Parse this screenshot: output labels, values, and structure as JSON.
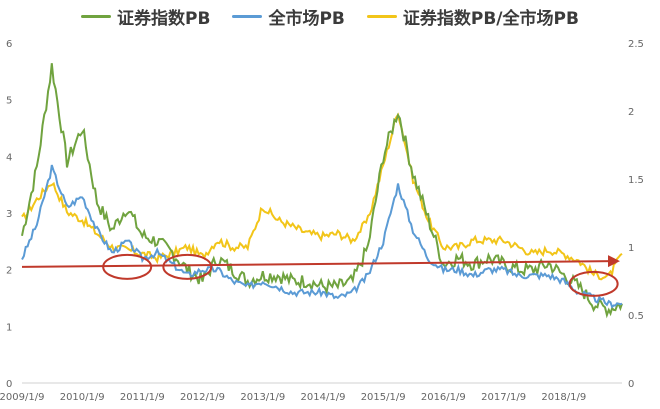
{
  "chart_data": {
    "type": "line",
    "title": "",
    "legend": {
      "placement": "top"
    },
    "series": [
      {
        "name": "证券指数PB",
        "color": "#70a33f",
        "axis": "left"
      },
      {
        "name": "全市场PB",
        "color": "#5b9bd5",
        "axis": "left"
      },
      {
        "name": "证券指数PB/全市场PB",
        "color": "#f2c519",
        "axis": "right"
      }
    ],
    "x": [
      "2009/1/9",
      "2009/4/9",
      "2009/7/9",
      "2009/10/9",
      "2010/1/9",
      "2010/4/9",
      "2010/7/9",
      "2010/10/9",
      "2011/1/9",
      "2011/4/9",
      "2011/7/9",
      "2011/10/9",
      "2012/1/9",
      "2012/4/9",
      "2012/7/9",
      "2012/10/9",
      "2013/1/9",
      "2013/4/9",
      "2013/7/9",
      "2013/10/9",
      "2014/1/9",
      "2014/4/9",
      "2014/7/9",
      "2014/10/9",
      "2015/1/9",
      "2015/4/9",
      "2015/7/9",
      "2015/10/9",
      "2016/1/9",
      "2016/4/9",
      "2016/7/9",
      "2016/10/9",
      "2017/1/9",
      "2017/4/9",
      "2017/7/9",
      "2017/10/9",
      "2018/1/9",
      "2018/4/9",
      "2018/7/9",
      "2018/10/9",
      "2018/12/28"
    ],
    "values": {
      "sec_pb": [
        2.6,
        3.8,
        5.6,
        3.9,
        4.5,
        3.2,
        2.7,
        3.1,
        2.6,
        2.5,
        2.3,
        2.0,
        1.8,
        2.2,
        2.0,
        1.8,
        1.9,
        1.9,
        1.8,
        1.8,
        1.7,
        1.7,
        1.8,
        2.4,
        4.0,
        4.8,
        3.7,
        2.9,
        2.1,
        2.2,
        2.1,
        2.2,
        2.1,
        2.0,
        2.0,
        2.1,
        1.9,
        1.7,
        1.4,
        1.3,
        1.4
      ],
      "mkt_pb": [
        2.2,
        2.8,
        3.8,
        3.1,
        3.3,
        2.7,
        2.3,
        2.5,
        2.2,
        2.3,
        2.1,
        1.9,
        2.0,
        2.0,
        1.8,
        1.7,
        1.8,
        1.7,
        1.6,
        1.6,
        1.6,
        1.5,
        1.6,
        1.9,
        2.5,
        3.5,
        2.7,
        2.2,
        2.0,
        2.0,
        1.9,
        2.0,
        2.0,
        1.9,
        1.9,
        1.9,
        1.8,
        1.6,
        1.5,
        1.4,
        1.4
      ],
      "ratio": [
        1.2,
        1.35,
        1.48,
        1.26,
        1.2,
        1.1,
        1.0,
        0.98,
        0.95,
        0.92,
        0.95,
        1.0,
        0.93,
        1.05,
        1.0,
        1.0,
        1.3,
        1.2,
        1.15,
        1.1,
        1.08,
        1.1,
        1.05,
        1.2,
        1.6,
        2.0,
        1.5,
        1.2,
        1.0,
        1.0,
        1.05,
        1.05,
        1.05,
        1.0,
        0.95,
        0.98,
        0.95,
        0.9,
        0.8,
        0.78,
        0.95
      ]
    },
    "y_left": {
      "min": 0,
      "max": 6,
      "ticks": [
        "0",
        "1",
        "2",
        "3",
        "4",
        "5",
        "6"
      ]
    },
    "y_right": {
      "min": 0,
      "max": 2.5,
      "ticks": [
        "0",
        "0.5",
        "1",
        "1.5",
        "2",
        "2.5"
      ]
    },
    "x_ticks": [
      "2009/1/9",
      "2010/1/9",
      "2011/1/9",
      "2012/1/9",
      "2013/1/9",
      "2014/1/9",
      "2015/1/9",
      "2016/1/9",
      "2017/1/9",
      "2018/1/9"
    ],
    "annotations": {
      "reference_line": {
        "y_left_start": 2.05,
        "y_left_end": 2.15,
        "color": "#c0392b"
      },
      "ellipses": [
        {
          "x": "2010/10/9",
          "y_left": 2.05,
          "color": "#c0392b"
        },
        {
          "x": "2011/10/9",
          "y_left": 2.05,
          "color": "#c0392b"
        },
        {
          "x": "2018/7/9",
          "y_left": 1.75,
          "color": "#c0392b"
        }
      ]
    },
    "grid": false
  }
}
